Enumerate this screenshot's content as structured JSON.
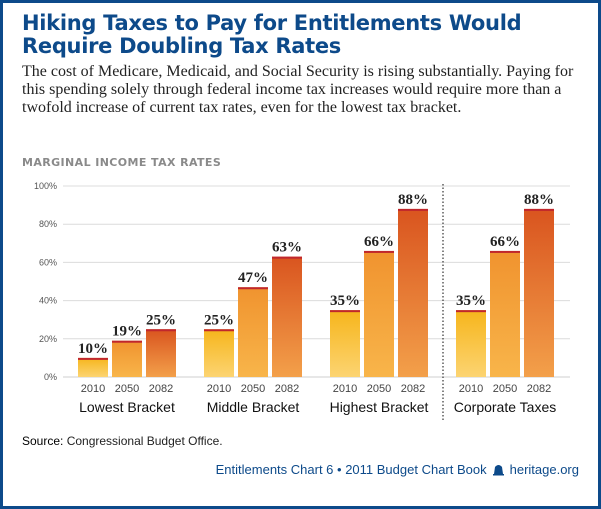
{
  "header": {
    "title": "Hiking Taxes to Pay for Entitlements Would Require Doubling Tax Rates",
    "subtitle": "The cost of Medicare, Medicaid, and Social Security is rising substantially. Paying for this spending solely through federal income tax increases would require more than a twofold increase of current tax rates, even for the lowest tax bracket."
  },
  "chart_data": {
    "type": "bar",
    "title": "MARGINAL INCOME TAX RATES",
    "xlabel": "",
    "ylabel": "",
    "ylim": [
      0,
      100
    ],
    "y_ticks": [
      "0%",
      "20%",
      "40%",
      "60%",
      "80%",
      "100%"
    ],
    "y_tick_values": [
      0,
      20,
      40,
      60,
      80,
      100
    ],
    "grid": true,
    "groups": [
      {
        "name": "Lowest Bracket",
        "years": [
          "2010",
          "2050",
          "2082"
        ],
        "values": [
          10,
          19,
          25
        ],
        "labels": [
          "10%",
          "19%",
          "25%"
        ]
      },
      {
        "name": "Middle Bracket",
        "years": [
          "2010",
          "2050",
          "2082"
        ],
        "values": [
          25,
          47,
          63
        ],
        "labels": [
          "25%",
          "47%",
          "63%"
        ]
      },
      {
        "name": "Highest Bracket",
        "years": [
          "2010",
          "2050",
          "2082"
        ],
        "values": [
          35,
          66,
          88
        ],
        "labels": [
          "35%",
          "66%",
          "88%"
        ]
      },
      {
        "name": "Corporate Taxes",
        "years": [
          "2010",
          "2050",
          "2082"
        ],
        "values": [
          35,
          66,
          88
        ],
        "labels": [
          "35%",
          "66%",
          "88%"
        ]
      }
    ],
    "separator_before_group": 3,
    "colors": {
      "2010": "#f8b81c",
      "2050": "#f29633",
      "2082": "#de5a24",
      "cap": "#c0272d",
      "grid": "#dcdcdc"
    }
  },
  "footer": {
    "source_label": "Source:",
    "source_text": "Congressional Budget Office.",
    "credit": "Entitlements Chart 6 • 2011 Budget Chart Book",
    "bell_icon": "liberty-bell-icon",
    "site": "heritage.org"
  }
}
